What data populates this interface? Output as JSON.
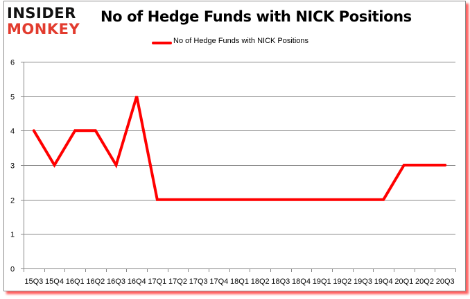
{
  "logo": {
    "line1": "INSIDER",
    "line2": "MONKEY",
    "line1_color": "#111111",
    "line2_color": "#e23b2e"
  },
  "chart_data": {
    "type": "line",
    "title": "No of Hedge Funds with NICK Positions",
    "xlabel": "",
    "ylabel": "",
    "categories": [
      "15Q3",
      "15Q4",
      "16Q1",
      "16Q2",
      "16Q3",
      "16Q4",
      "17Q1",
      "17Q2",
      "17Q3",
      "17Q4",
      "18Q1",
      "18Q2",
      "18Q3",
      "18Q4",
      "19Q1",
      "19Q2",
      "19Q3",
      "19Q4",
      "20Q1",
      "20Q2",
      "20Q3"
    ],
    "series": [
      {
        "name": "No of Hedge Funds with NICK Positions",
        "color": "#ff0000",
        "values": [
          4,
          3,
          4,
          4,
          3,
          5,
          2,
          2,
          2,
          2,
          2,
          2,
          2,
          2,
          2,
          2,
          2,
          2,
          3,
          3,
          3
        ]
      }
    ],
    "ylim": [
      0,
      6
    ],
    "yticks": [
      0,
      1,
      2,
      3,
      4,
      5,
      6
    ],
    "grid": true,
    "legend_position": "top"
  }
}
